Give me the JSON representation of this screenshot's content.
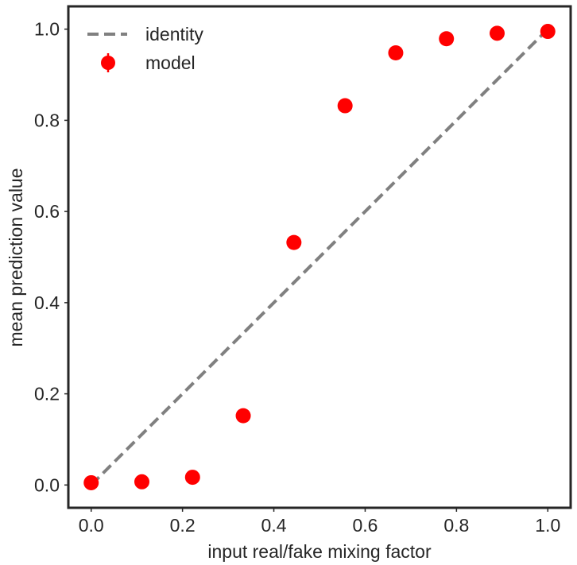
{
  "chart_data": {
    "type": "scatter",
    "title": "",
    "xlabel": "input real/fake mixing factor",
    "ylabel": "mean prediction value",
    "xlim": [
      -0.05,
      1.05
    ],
    "ylim": [
      -0.05,
      1.05
    ],
    "xticks": [
      0.0,
      0.2,
      0.4,
      0.6,
      0.8,
      1.0
    ],
    "yticks": [
      0.0,
      0.2,
      0.4,
      0.6,
      0.8,
      1.0
    ],
    "xtick_labels": [
      "0.0",
      "0.2",
      "0.4",
      "0.6",
      "0.8",
      "1.0"
    ],
    "ytick_labels": [
      "0.0",
      "0.2",
      "0.4",
      "0.6",
      "0.8",
      "1.0"
    ],
    "grid": false,
    "legend_position": "top-left",
    "series": [
      {
        "name": "identity",
        "kind": "dashed-line",
        "color": "#808080",
        "x": [
          0.0,
          1.0
        ],
        "y": [
          0.0,
          1.0
        ]
      },
      {
        "name": "model",
        "kind": "errorbar-marker",
        "color": "#ff0000",
        "x": [
          0.0,
          0.111,
          0.222,
          0.333,
          0.444,
          0.556,
          0.667,
          0.778,
          0.889,
          1.0
        ],
        "y": [
          0.005,
          0.007,
          0.017,
          0.152,
          0.532,
          0.832,
          0.948,
          0.979,
          0.991,
          0.995
        ]
      }
    ]
  }
}
